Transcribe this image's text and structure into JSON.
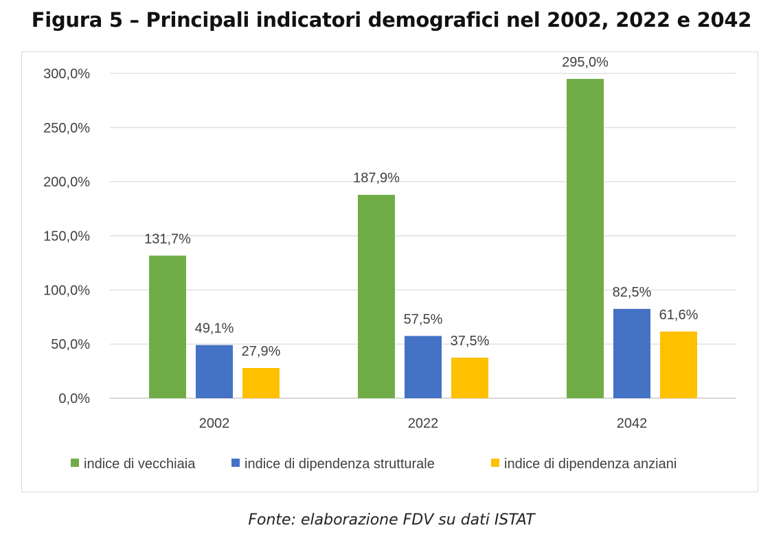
{
  "title": "Figura 5 – Principali indicatori demografici nel 2002, 2022 e 2042",
  "source": "Fonte: elaborazione FDV su dati ISTAT",
  "chart_data": {
    "type": "bar",
    "categories": [
      "2002",
      "2022",
      "2042"
    ],
    "series": [
      {
        "name": "indice di vecchiaia",
        "values": [
          131.7,
          187.9,
          295.0
        ],
        "labels": [
          "131,7%",
          "187,9%",
          "295,0%"
        ],
        "color": "#70ad47"
      },
      {
        "name": "indice di dipendenza strutturale",
        "values": [
          49.1,
          57.5,
          82.5
        ],
        "labels": [
          "49,1%",
          "57,5%",
          "82,5%"
        ],
        "color": "#4472c4"
      },
      {
        "name": "indice di dipendenza anziani",
        "values": [
          27.9,
          37.5,
          61.6
        ],
        "labels": [
          "27,9%",
          "37,5%",
          "61,6%"
        ],
        "color": "#ffc000"
      }
    ],
    "ylim": [
      0,
      300
    ],
    "yticks": [
      "0,0%",
      "50,0%",
      "100,0%",
      "150,0%",
      "200,0%",
      "250,0%",
      "300,0%"
    ],
    "grid": true,
    "legend": "bottom"
  }
}
